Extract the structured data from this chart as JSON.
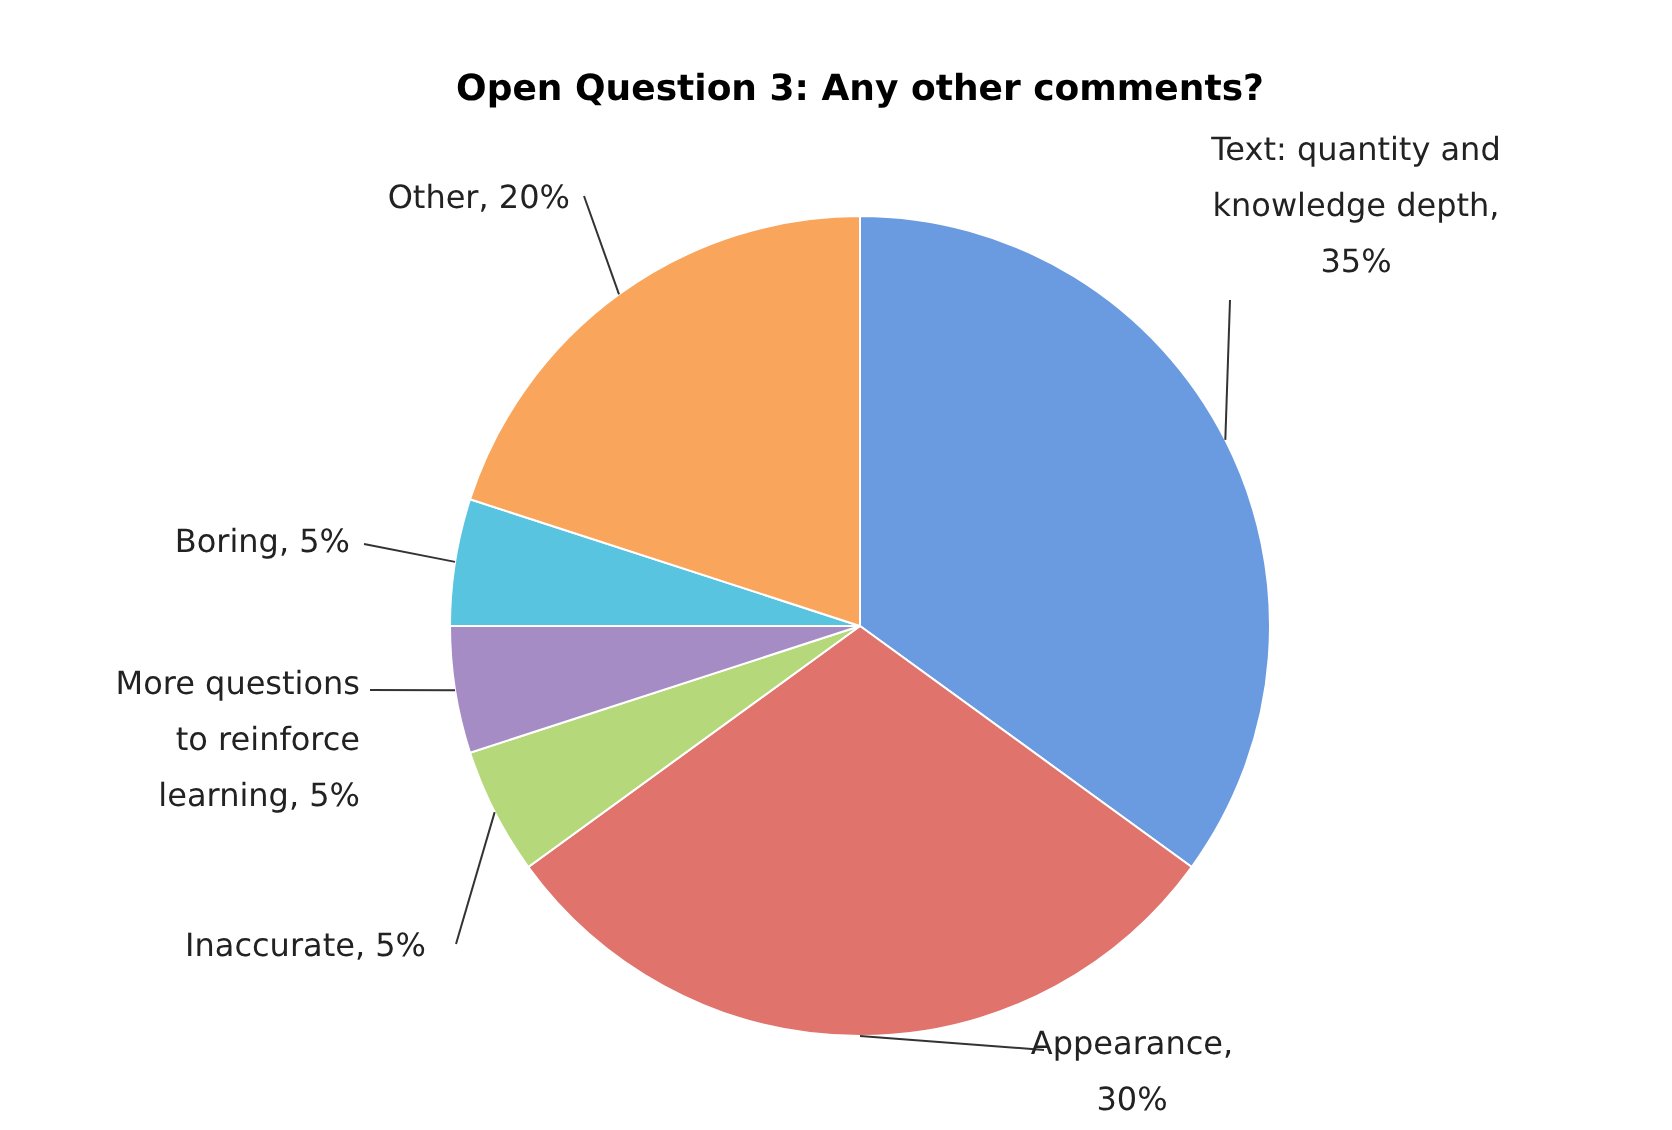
{
  "chart_data": {
    "type": "pie",
    "title": "Open Question 3: Any other comments?",
    "categories": [
      "Text: quantity and knowledge depth, 35%",
      "Appearance, 30%",
      "Inaccurate, 5%",
      "More questions to reinforce learning, 5%",
      "Boring, 5%",
      "Other, 20%"
    ],
    "values": [
      35,
      30,
      5,
      5,
      5,
      20
    ],
    "colors": [
      "#6a9be0",
      "#e0736c",
      "#b5d97a",
      "#a58cc4",
      "#58c4e0",
      "#f9a55b"
    ],
    "legend": false
  }
}
